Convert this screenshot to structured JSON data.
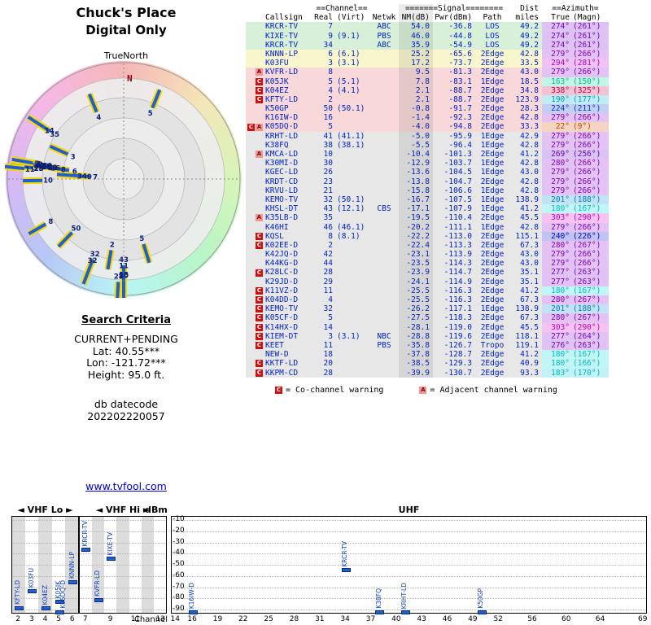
{
  "colors": {
    "data_text": "#0022cc",
    "band_green": "#d8efd8",
    "band_yellow": "#f8f6cc",
    "band_pink": "#f8d8d8",
    "band_gray": "#e7e7e7",
    "flag_co": "#cc1111",
    "flag_adj": "#f09494",
    "needle_blue": "#1f5fd0",
    "needle_yellow": "#f5d800",
    "link": "#0000cc",
    "north_marker": "#a00000"
  },
  "radar": {
    "title_line1": "Chuck's Place",
    "title_line2": "Digital Only",
    "north_label": "TrueNorth",
    "n_marker": "N"
  },
  "search_criteria": {
    "heading": "Search Criteria",
    "lines": [
      "CURRENT+PENDING",
      "Lat: 40.55***",
      "Lon: -121.72***",
      "Height: 95.0 ft."
    ],
    "datecode_label": "db datecode",
    "datecode_value": "202202220057"
  },
  "footer_link": "www.tvfool.com",
  "table": {
    "header_top": {
      "channel": "==Channel==",
      "signal": "=======Signal========",
      "dist": "Dist",
      "azimuth": "==Azimuth="
    },
    "header_cols": {
      "callsign": "Callsign",
      "real": "Real",
      "virt": "(Virt)",
      "netwk": "Netwk",
      "nm": "NM(dB)",
      "pwr": "Pwr(dBm)",
      "path": "Path",
      "dist": "miles",
      "true": "True",
      "magn": "(Magn)"
    },
    "legend": [
      {
        "flag": "C",
        "style": "co",
        "text": "= Co-channel warning"
      },
      {
        "flag": "A",
        "style": "adj",
        "text": "= Adjacent channel warning"
      }
    ],
    "rows": [
      {
        "f": "",
        "cs": "KRCR-TV",
        "real": "7",
        "virt": "",
        "net": "ABC",
        "nm": "54.0",
        "pwr": "-36.8",
        "path": "LOS",
        "dist": "49.2",
        "az": "274°",
        "magn": "(261°)",
        "band": "green"
      },
      {
        "f": "",
        "cs": "KIXE-TV",
        "real": "9",
        "virt": "(9.1)",
        "net": "PBS",
        "nm": "46.0",
        "pwr": "-44.8",
        "path": "LOS",
        "dist": "49.2",
        "az": "274°",
        "magn": "(261°)",
        "band": "green"
      },
      {
        "f": "",
        "cs": "KRCR-TV",
        "real": "34",
        "virt": "",
        "net": "ABC",
        "nm": "35.9",
        "pwr": "-54.9",
        "path": "LOS",
        "dist": "49.2",
        "az": "274°",
        "magn": "(261°)",
        "band": "green"
      },
      {
        "f": "",
        "cs": "KNNN-LP",
        "real": "6",
        "virt": "(6.1)",
        "net": "",
        "nm": "25.2",
        "pwr": "-65.6",
        "path": "2Edge",
        "dist": "42.8",
        "az": "279°",
        "magn": "(266°)",
        "band": "yellow"
      },
      {
        "f": "",
        "cs": "K03FU",
        "real": "3",
        "virt": "(3.1)",
        "net": "",
        "nm": "17.2",
        "pwr": "-73.7",
        "path": "2Edge",
        "dist": "33.5",
        "az": "294°",
        "magn": "(281°)",
        "band": "yellow"
      },
      {
        "f": "A",
        "cs": "KVFR-LD",
        "real": "8",
        "virt": "",
        "net": "",
        "nm": "9.5",
        "pwr": "-81.3",
        "path": "2Edge",
        "dist": "43.0",
        "az": "279°",
        "magn": "(266°)",
        "band": "pink"
      },
      {
        "f": "C",
        "cs": "K05JK",
        "real": "5",
        "virt": "(5.1)",
        "net": "",
        "nm": "7.8",
        "pwr": "-83.1",
        "path": "1Edge",
        "dist": "18.5",
        "az": "163°",
        "magn": "(150°)",
        "band": "pink"
      },
      {
        "f": "C",
        "cs": "K04EZ",
        "real": "4",
        "virt": "(4.1)",
        "net": "",
        "nm": "2.1",
        "pwr": "-88.7",
        "path": "2Edge",
        "dist": "34.8",
        "az": "338°",
        "magn": "(325°)",
        "band": "pink"
      },
      {
        "f": "C",
        "cs": "KFTY-LD",
        "real": "2",
        "virt": "",
        "net": "",
        "nm": "2.1",
        "pwr": "-88.7",
        "path": "2Edge",
        "dist": "123.9",
        "az": "190°",
        "magn": "(177°)",
        "band": "pink"
      },
      {
        "f": "",
        "cs": "K50GP",
        "real": "50",
        "virt": "(50.1)",
        "net": "",
        "nm": "-0.8",
        "pwr": "-91.7",
        "path": "2Edge",
        "dist": "28.3",
        "az": "224°",
        "magn": "(211°)",
        "band": "pink"
      },
      {
        "f": "",
        "cs": "K16IW-D",
        "real": "16",
        "virt": "",
        "net": "",
        "nm": "-1.4",
        "pwr": "-92.3",
        "path": "2Edge",
        "dist": "42.8",
        "az": "279°",
        "magn": "(266°)",
        "band": "pink"
      },
      {
        "f": "CA",
        "cs": "K05DQ-D",
        "real": "5",
        "virt": "",
        "net": "",
        "nm": "-4.0",
        "pwr": "-94.8",
        "path": "2Edge",
        "dist": "33.3",
        "az": "22°",
        "magn": "(9°)",
        "band": "pink"
      },
      {
        "f": "",
        "cs": "KRHT-LD",
        "real": "41",
        "virt": "(41.1)",
        "net": "",
        "nm": "-5.0",
        "pwr": "-95.9",
        "path": "1Edge",
        "dist": "42.9",
        "az": "279°",
        "magn": "(266°)",
        "band": "gray"
      },
      {
        "f": "",
        "cs": "K38FQ",
        "real": "38",
        "virt": "(38.1)",
        "net": "",
        "nm": "-5.5",
        "pwr": "-96.4",
        "path": "1Edge",
        "dist": "42.8",
        "az": "279°",
        "magn": "(266°)",
        "band": "gray"
      },
      {
        "f": "A",
        "cs": "KMCA-LD",
        "real": "10",
        "virt": "",
        "net": "",
        "nm": "-10.4",
        "pwr": "-101.3",
        "path": "2Edge",
        "dist": "41.2",
        "az": "269°",
        "magn": "(256°)",
        "band": "gray"
      },
      {
        "f": "",
        "cs": "K30MI-D",
        "real": "30",
        "virt": "",
        "net": "",
        "nm": "-12.9",
        "pwr": "-103.7",
        "path": "1Edge",
        "dist": "42.8",
        "az": "280°",
        "magn": "(266°)",
        "band": "gray"
      },
      {
        "f": "",
        "cs": "KGEC-LD",
        "real": "26",
        "virt": "",
        "net": "",
        "nm": "-13.6",
        "pwr": "-104.5",
        "path": "1Edge",
        "dist": "43.0",
        "az": "279°",
        "magn": "(266°)",
        "band": "gray"
      },
      {
        "f": "",
        "cs": "KRDT-CD",
        "real": "23",
        "virt": "",
        "net": "",
        "nm": "-13.8",
        "pwr": "-104.7",
        "path": "2Edge",
        "dist": "42.8",
        "az": "279°",
        "magn": "(266°)",
        "band": "gray"
      },
      {
        "f": "",
        "cs": "KRVU-LD",
        "real": "21",
        "virt": "",
        "net": "",
        "nm": "-15.8",
        "pwr": "-106.6",
        "path": "1Edge",
        "dist": "42.8",
        "az": "279°",
        "magn": "(266°)",
        "band": "gray"
      },
      {
        "f": "",
        "cs": "KEMO-TV",
        "real": "32",
        "virt": "(50.1)",
        "net": "",
        "nm": "-16.7",
        "pwr": "-107.5",
        "path": "1Edge",
        "dist": "138.9",
        "az": "201°",
        "magn": "(188°)",
        "band": "gray"
      },
      {
        "f": "",
        "cs": "KHSL-DT",
        "real": "43",
        "virt": "(12.1)",
        "net": "CBS",
        "nm": "-17.1",
        "pwr": "-107.9",
        "path": "1Edge",
        "dist": "41.2",
        "az": "180°",
        "magn": "(167°)",
        "band": "gray"
      },
      {
        "f": "A",
        "cs": "K35LB-D",
        "real": "35",
        "virt": "",
        "net": "",
        "nm": "-19.5",
        "pwr": "-110.4",
        "path": "2Edge",
        "dist": "45.5",
        "az": "303°",
        "magn": "(290°)",
        "band": "gray"
      },
      {
        "f": "",
        "cs": "K46HI",
        "real": "46",
        "virt": "(46.1)",
        "net": "",
        "nm": "-20.2",
        "pwr": "-111.1",
        "path": "1Edge",
        "dist": "42.8",
        "az": "279°",
        "magn": "(266°)",
        "band": "gray"
      },
      {
        "f": "C",
        "cs": "KQSL",
        "real": "8",
        "virt": "(8.1)",
        "net": "",
        "nm": "-22.2",
        "pwr": "-113.0",
        "path": "2Edge",
        "dist": "115.1",
        "az": "240°",
        "magn": "(226°)",
        "band": "gray"
      },
      {
        "f": "C",
        "cs": "K02EE-D",
        "real": "2",
        "virt": "",
        "net": "",
        "nm": "-22.4",
        "pwr": "-113.3",
        "path": "2Edge",
        "dist": "67.3",
        "az": "280°",
        "magn": "(267°)",
        "band": "gray"
      },
      {
        "f": "",
        "cs": "K42JQ-D",
        "real": "42",
        "virt": "",
        "net": "",
        "nm": "-23.1",
        "pwr": "-113.9",
        "path": "2Edge",
        "dist": "43.0",
        "az": "279°",
        "magn": "(266°)",
        "band": "gray"
      },
      {
        "f": "",
        "cs": "K44KG-D",
        "real": "44",
        "virt": "",
        "net": "",
        "nm": "-23.5",
        "pwr": "-114.3",
        "path": "2Edge",
        "dist": "43.0",
        "az": "279°",
        "magn": "(266°)",
        "band": "gray"
      },
      {
        "f": "C",
        "cs": "K28LC-D",
        "real": "28",
        "virt": "",
        "net": "",
        "nm": "-23.9",
        "pwr": "-114.7",
        "path": "2Edge",
        "dist": "35.1",
        "az": "277°",
        "magn": "(263°)",
        "band": "gray"
      },
      {
        "f": "",
        "cs": "K29JD-D",
        "real": "29",
        "virt": "",
        "net": "",
        "nm": "-24.1",
        "pwr": "-114.9",
        "path": "2Edge",
        "dist": "35.1",
        "az": "277°",
        "magn": "(263°)",
        "band": "gray"
      },
      {
        "f": "C",
        "cs": "K11VZ-D",
        "real": "11",
        "virt": "",
        "net": "",
        "nm": "-25.5",
        "pwr": "-116.3",
        "path": "2Edge",
        "dist": "41.2",
        "az": "180°",
        "magn": "(167°)",
        "band": "gray"
      },
      {
        "f": "C",
        "cs": "K04DD-D",
        "real": "4",
        "virt": "",
        "net": "",
        "nm": "-25.5",
        "pwr": "-116.3",
        "path": "2Edge",
        "dist": "67.3",
        "az": "280°",
        "magn": "(267°)",
        "band": "gray"
      },
      {
        "f": "C",
        "cs": "KEMO-TV",
        "real": "32",
        "virt": "",
        "net": "",
        "nm": "-26.2",
        "pwr": "-117.1",
        "path": "1Edge",
        "dist": "138.9",
        "az": "201°",
        "magn": "(188°)",
        "band": "gray"
      },
      {
        "f": "C",
        "cs": "K05CF-D",
        "real": "5",
        "virt": "",
        "net": "",
        "nm": "-27.5",
        "pwr": "-118.3",
        "path": "2Edge",
        "dist": "67.3",
        "az": "280°",
        "magn": "(267°)",
        "band": "gray"
      },
      {
        "f": "C",
        "cs": "K14HX-D",
        "real": "14",
        "virt": "",
        "net": "",
        "nm": "-28.1",
        "pwr": "-119.0",
        "path": "2Edge",
        "dist": "45.5",
        "az": "303°",
        "magn": "(290°)",
        "band": "gray"
      },
      {
        "f": "C",
        "cs": "KIEM-DT",
        "real": "3",
        "virt": "(3.1)",
        "net": "NBC",
        "nm": "-28.8",
        "pwr": "-119.6",
        "path": "2Edge",
        "dist": "118.1",
        "az": "277°",
        "magn": "(264°)",
        "band": "gray"
      },
      {
        "f": "C",
        "cs": "KEET",
        "real": "11",
        "virt": "",
        "net": "PBS",
        "nm": "-35.8",
        "pwr": "-126.7",
        "path": "Tropo",
        "dist": "119.1",
        "az": "276°",
        "magn": "(263°)",
        "band": "gray"
      },
      {
        "f": "",
        "cs": "NEW-D",
        "real": "18",
        "virt": "",
        "net": "",
        "nm": "-37.8",
        "pwr": "-128.7",
        "path": "2Edge",
        "dist": "41.2",
        "az": "180°",
        "magn": "(167°)",
        "band": "gray"
      },
      {
        "f": "C",
        "cs": "KKTF-LD",
        "real": "20",
        "virt": "",
        "net": "",
        "nm": "-38.5",
        "pwr": "-129.3",
        "path": "2Edge",
        "dist": "40.9",
        "az": "180°",
        "magn": "(166°)",
        "band": "gray"
      },
      {
        "f": "C",
        "cs": "KKPM-CD",
        "real": "28",
        "virt": "",
        "net": "",
        "nm": "-39.9",
        "pwr": "-130.7",
        "path": "2Edge",
        "dist": "93.3",
        "az": "183°",
        "magn": "(170°)",
        "band": "gray"
      }
    ]
  },
  "chart_data": {
    "type": "scatter",
    "title": "",
    "ylabel": "dBm",
    "xlabel": "Channel",
    "ylim": [
      -90,
      -10
    ],
    "yticks": [
      -10,
      -20,
      -30,
      -40,
      -50,
      -60,
      -70,
      -80,
      -90
    ],
    "bands": [
      {
        "label": "VHF Lo",
        "arrows": true,
        "ch_min": 2,
        "ch_max": 6,
        "ticks": [
          2,
          3,
          4,
          5,
          6
        ]
      },
      {
        "label": "VHF Hi",
        "arrows": true,
        "ch_min": 7,
        "ch_max": 13,
        "ticks": [
          7,
          9,
          11,
          13
        ]
      },
      {
        "label": "UHF",
        "arrows": false,
        "ch_min": 14,
        "ch_max": 69,
        "ticks": [
          14,
          16,
          19,
          22,
          25,
          28,
          31,
          34,
          37,
          40,
          43,
          46,
          49,
          52,
          56,
          60,
          64,
          69
        ]
      }
    ],
    "points": [
      {
        "callsign": "KFTY-LD",
        "channel": 2,
        "dbm": -88.7
      },
      {
        "callsign": "K03FU",
        "channel": 3,
        "dbm": -73.7
      },
      {
        "callsign": "K04EZ",
        "channel": 4,
        "dbm": -88.7
      },
      {
        "callsign": "K05JK",
        "channel": 5,
        "dbm": -83.1
      },
      {
        "callsign": "K05DQ-D",
        "channel": 5,
        "dbm": -94.8
      },
      {
        "callsign": "KNNN-LP",
        "channel": 6,
        "dbm": -65.6
      },
      {
        "callsign": "KRCR-TV",
        "channel": 7,
        "dbm": -36.8
      },
      {
        "callsign": "KVFR-LD",
        "channel": 8,
        "dbm": -81.3
      },
      {
        "callsign": "KIXE-TV",
        "channel": 9,
        "dbm": -44.8
      },
      {
        "callsign": "K16IW-D",
        "channel": 16,
        "dbm": -92.3
      },
      {
        "callsign": "KRCR-TV",
        "channel": 34,
        "dbm": -54.9
      },
      {
        "callsign": "K38FQ",
        "channel": 38,
        "dbm": -96.4
      },
      {
        "callsign": "KRHT-LD",
        "channel": 41,
        "dbm": -95.9
      },
      {
        "callsign": "K50GP",
        "channel": 50,
        "dbm": -91.7
      }
    ]
  }
}
